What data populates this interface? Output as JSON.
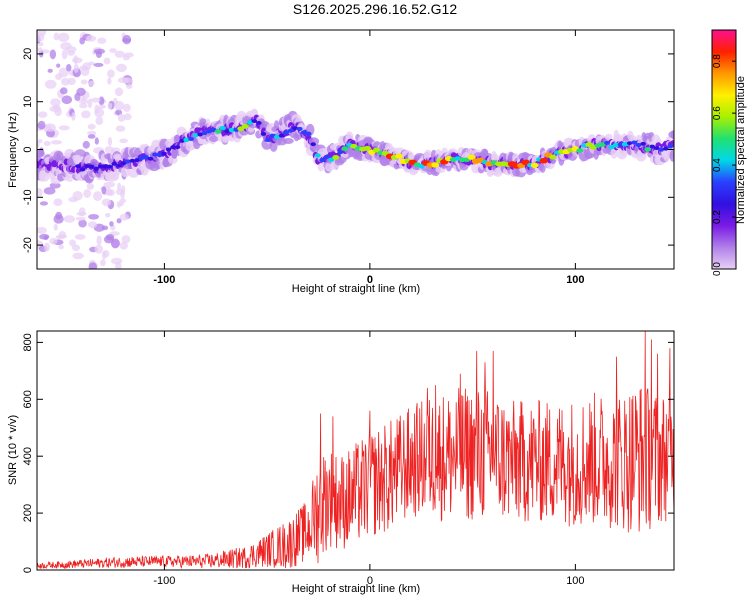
{
  "title": "S126.2025.296.16.52.G12",
  "colors": {
    "snr_line": "#ee2222",
    "frame": "#000000",
    "colormap": [
      "#e8d0f5",
      "#b080e8",
      "#7a1ae6",
      "#3010e0",
      "#2a40ff",
      "#00d8e8",
      "#22e070",
      "#a8f000",
      "#fff000",
      "#ff9800",
      "#ff2000",
      "#ff1090"
    ]
  },
  "chart_data": [
    {
      "type": "heatmap",
      "title": "S126.2025.296.16.52.G12",
      "xlabel": "Height of straight line (km)",
      "ylabel": "Frequency (Hz)",
      "xlim": [
        -162,
        148
      ],
      "ylim": [
        -25,
        25
      ],
      "xticks": [
        -100,
        0,
        100
      ],
      "yticks": [
        -20,
        -10,
        0,
        10,
        20
      ],
      "colorbar": {
        "label": "Normalized spectral amplitude",
        "range": [
          0,
          0.92
        ],
        "ticks": [
          "0.0",
          "0.2",
          "0.4",
          "0.6",
          "0.8"
        ]
      },
      "ridge": {
        "x": [
          -155,
          -135,
          -120,
          -110,
          -100,
          -90,
          -80,
          -70,
          -60,
          -55,
          -50,
          -40,
          -35,
          -30,
          -25,
          -20,
          -15,
          -10,
          0,
          10,
          20,
          30,
          40,
          50,
          60,
          70,
          80,
          90,
          100,
          110,
          120,
          130,
          140,
          148
        ],
        "freq": [
          -3,
          -4,
          -3,
          -2,
          -1,
          2,
          4,
          4,
          5,
          6,
          2,
          4,
          5,
          3,
          -2,
          -2,
          -1,
          1,
          0,
          -1,
          -3,
          -3,
          -2,
          -2,
          -3,
          -3,
          -3,
          -1,
          0,
          1,
          1,
          1,
          0,
          1
        ],
        "amplitude": [
          0.2,
          0.3,
          0.3,
          0.35,
          0.35,
          0.45,
          0.5,
          0.5,
          0.55,
          0.45,
          0.35,
          0.45,
          0.4,
          0.35,
          0.45,
          0.5,
          0.6,
          0.55,
          0.6,
          0.8,
          0.85,
          0.8,
          0.75,
          0.8,
          0.75,
          0.85,
          0.8,
          0.75,
          0.85,
          0.7,
          0.6,
          0.5,
          0.4,
          0.35
        ]
      }
    },
    {
      "type": "line",
      "xlabel": "Height of straight line (km)",
      "ylabel": "SNR (10 * v/v)",
      "xlim": [
        -162,
        148
      ],
      "ylim": [
        0,
        840
      ],
      "xticks": [
        -100,
        0,
        100
      ],
      "yticks": [
        0,
        200,
        400,
        600,
        800
      ],
      "series": [
        {
          "envelope_x": [
            -162,
            -140,
            -120,
            -100,
            -80,
            -60,
            -50,
            -40,
            -30,
            -25,
            -20,
            -15,
            -10,
            0,
            10,
            20,
            30,
            40,
            50,
            60,
            70,
            80,
            90,
            100,
            110,
            120,
            130,
            140,
            148
          ],
          "baseline": [
            15,
            22,
            28,
            30,
            30,
            45,
            70,
            90,
            140,
            220,
            260,
            240,
            250,
            300,
            330,
            380,
            400,
            400,
            410,
            400,
            380,
            380,
            380,
            380,
            390,
            380,
            400,
            390,
            410
          ],
          "amplitude": [
            10,
            15,
            20,
            20,
            25,
            40,
            60,
            90,
            110,
            200,
            180,
            170,
            180,
            190,
            200,
            200,
            220,
            240,
            240,
            240,
            220,
            220,
            220,
            230,
            240,
            240,
            280,
            240,
            220
          ],
          "peaks_x": [
            -24,
            -18,
            0,
            28,
            32,
            44,
            52,
            56,
            60,
            120,
            134,
            137,
            140,
            146
          ],
          "peaks_y": [
            550,
            540,
            560,
            640,
            650,
            690,
            770,
            730,
            770,
            750,
            840,
            810,
            760,
            780
          ]
        }
      ]
    }
  ]
}
